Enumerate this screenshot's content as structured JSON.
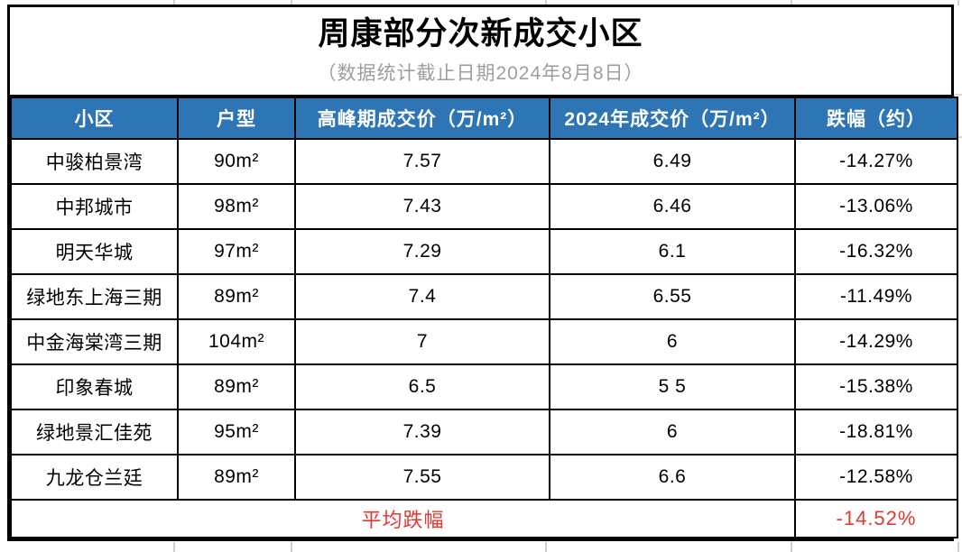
{
  "chart_data": {
    "type": "table",
    "title": "周康部分次新成交小区",
    "subtitle": "（数据统计截止日期2024年8月8日）",
    "columns": [
      "小区",
      "户型",
      "高峰期成交价（万/m²）",
      "2024年成交价（万/m²）",
      "跌幅（约）"
    ],
    "column_keys": [
      "community",
      "unit-size",
      "peak-price",
      "price-2024",
      "decline"
    ],
    "rows": [
      [
        "中骏柏景湾",
        "90m²",
        "7.57",
        "6.49",
        "-14.27%"
      ],
      [
        "中邦城市",
        "98m²",
        "7.43",
        "6.46",
        "-13.06%"
      ],
      [
        "明天华城",
        "97m²",
        "7.29",
        "6.1",
        "-16.32%"
      ],
      [
        "绿地东上海三期",
        "89m²",
        "7.4",
        "6.55",
        "-11.49%"
      ],
      [
        "中金海棠湾三期",
        "104m²",
        "7",
        "6",
        "-14.29%"
      ],
      [
        "印象春城",
        "89m²",
        "6.5",
        "5 5",
        "-15.38%"
      ],
      [
        "绿地景汇佳苑",
        "95m²",
        "7.39",
        "6",
        "-18.81%"
      ],
      [
        "九龙仓兰廷",
        "89m²",
        "7.55",
        "6.6",
        "-12.58%"
      ]
    ],
    "footer": {
      "label": "平均跌幅",
      "value": "-14.52%"
    },
    "layout": {
      "grid": "on",
      "header_position": "top"
    }
  },
  "colors": {
    "header_bg": "#2E75B6",
    "header_text": "#FFFFFF",
    "body_text": "#000000",
    "subtitle_text": "#9E9E9E",
    "highlight_red": "#E03931",
    "table_border": "#000000",
    "sheet_gridline": "#D0D0D0"
  }
}
